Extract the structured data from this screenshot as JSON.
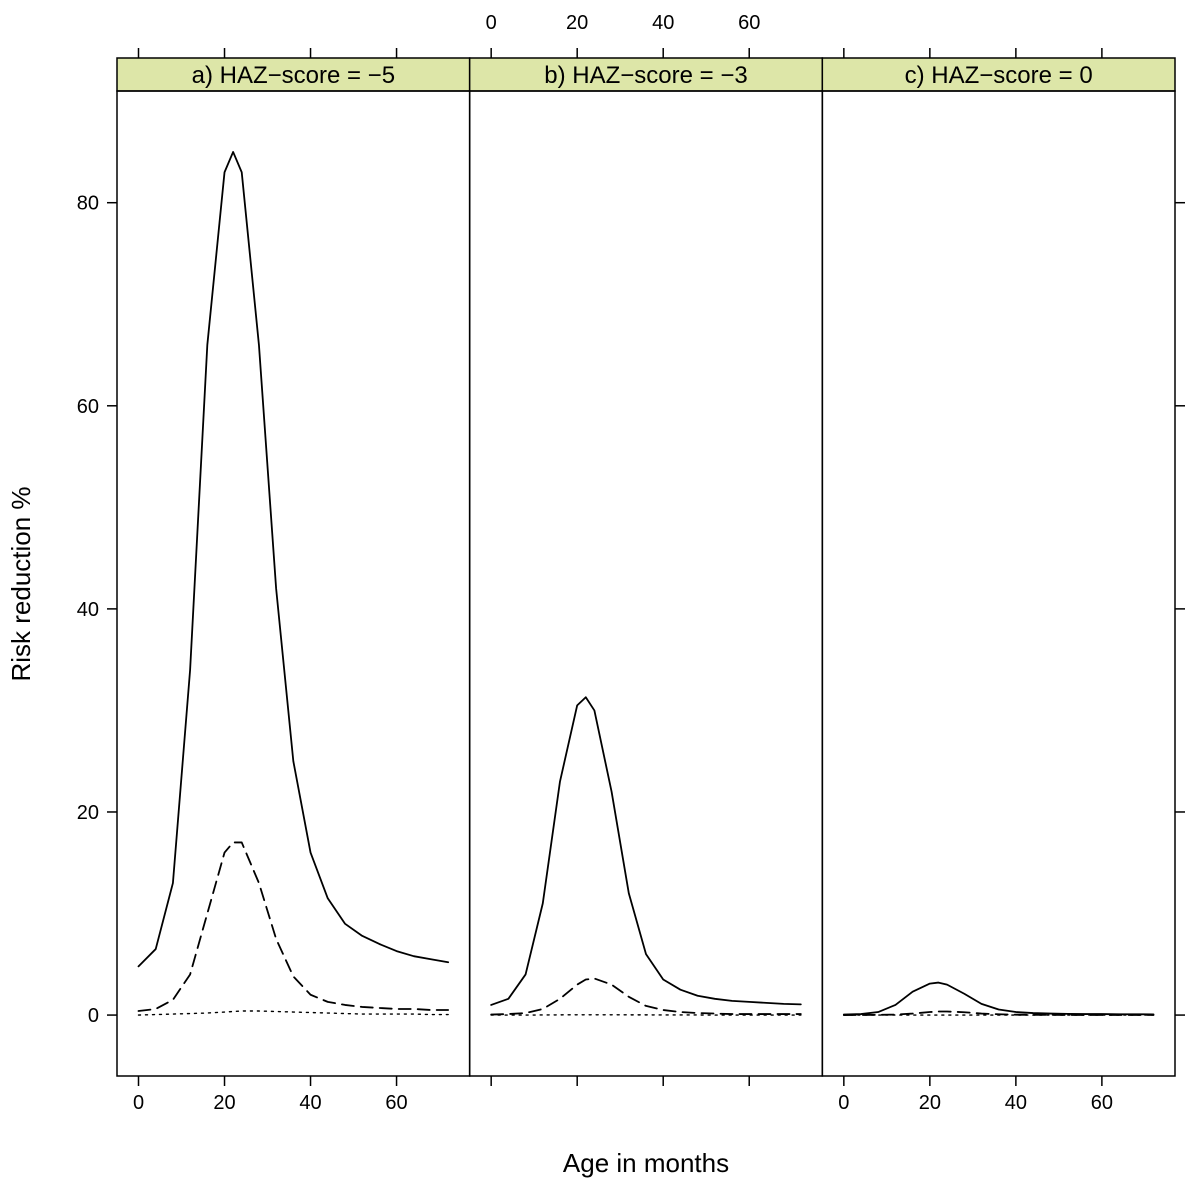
{
  "chart_data": {
    "type": "line",
    "ylabel": "Risk reduction %",
    "xlabel": "Age in months",
    "xlim": [
      -5,
      77
    ],
    "ylim": [
      -6,
      91
    ],
    "x_ticks": [
      0,
      20,
      40,
      60
    ],
    "y_ticks": [
      0,
      20,
      40,
      60,
      80
    ],
    "x": [
      0,
      4,
      8,
      12,
      16,
      20,
      22,
      24,
      28,
      32,
      36,
      40,
      44,
      48,
      52,
      56,
      60,
      64,
      68,
      72
    ],
    "panels": [
      {
        "strip": "a) HAZ−score = −5",
        "series": [
          {
            "style": "solid",
            "values": [
              4.8,
              6.5,
              13,
              34,
              66,
              83,
              85,
              83,
              66,
              42,
              25,
              16,
              11.5,
              9,
              7.8,
              7,
              6.3,
              5.8,
              5.5,
              5.2
            ]
          },
          {
            "style": "dashed",
            "values": [
              0.4,
              0.6,
              1.5,
              4,
              10,
              16,
              17,
              17,
              13,
              7.5,
              3.8,
              2,
              1.3,
              1,
              0.8,
              0.7,
              0.6,
              0.6,
              0.5,
              0.5
            ]
          },
          {
            "style": "dotted",
            "values": [
              0,
              0.05,
              0.1,
              0.15,
              0.2,
              0.3,
              0.35,
              0.4,
              0.4,
              0.35,
              0.3,
              0.25,
              0.2,
              0.15,
              0.1,
              0.1,
              0.1,
              0.1,
              0.05,
              0.05
            ]
          }
        ]
      },
      {
        "strip": "b) HAZ−score = −3",
        "series": [
          {
            "style": "solid",
            "values": [
              1,
              1.6,
              4,
              11,
              23,
              30.5,
              31.3,
              30,
              22,
              12,
              6,
              3.5,
              2.5,
              1.9,
              1.6,
              1.4,
              1.3,
              1.2,
              1.1,
              1.05
            ]
          },
          {
            "style": "dashed",
            "values": [
              0.05,
              0.1,
              0.2,
              0.6,
              1.6,
              3,
              3.5,
              3.6,
              3,
              1.8,
              0.9,
              0.5,
              0.3,
              0.2,
              0.15,
              0.1,
              0.1,
              0.1,
              0.1,
              0.1
            ]
          },
          {
            "style": "dotted",
            "values": [
              0,
              0,
              0,
              0.01,
              0.02,
              0.03,
              0.03,
              0.03,
              0.03,
              0.02,
              0.02,
              0.01,
              0.01,
              0.01,
              0,
              0,
              0,
              0,
              0,
              0
            ]
          }
        ]
      },
      {
        "strip": "c) HAZ−score = 0",
        "series": [
          {
            "style": "solid",
            "values": [
              0.05,
              0.1,
              0.3,
              1,
              2.3,
              3.1,
              3.2,
              3,
              2.1,
              1.1,
              0.55,
              0.3,
              0.2,
              0.15,
              0.12,
              0.1,
              0.1,
              0.08,
              0.08,
              0.07
            ]
          },
          {
            "style": "dashed",
            "values": [
              0,
              0.01,
              0.02,
              0.05,
              0.15,
              0.3,
              0.35,
              0.35,
              0.28,
              0.15,
              0.08,
              0.04,
              0.02,
              0.02,
              0.01,
              0.01,
              0.01,
              0.01,
              0.01,
              0.01
            ]
          },
          {
            "style": "dotted",
            "values": [
              0,
              0,
              0,
              0,
              0,
              0,
              0,
              0,
              0,
              0,
              0,
              0,
              0,
              0,
              0,
              0,
              0,
              0,
              0,
              0
            ]
          }
        ]
      }
    ],
    "colors": {
      "strip_background": "#dde6a8",
      "line": "#000000"
    }
  }
}
